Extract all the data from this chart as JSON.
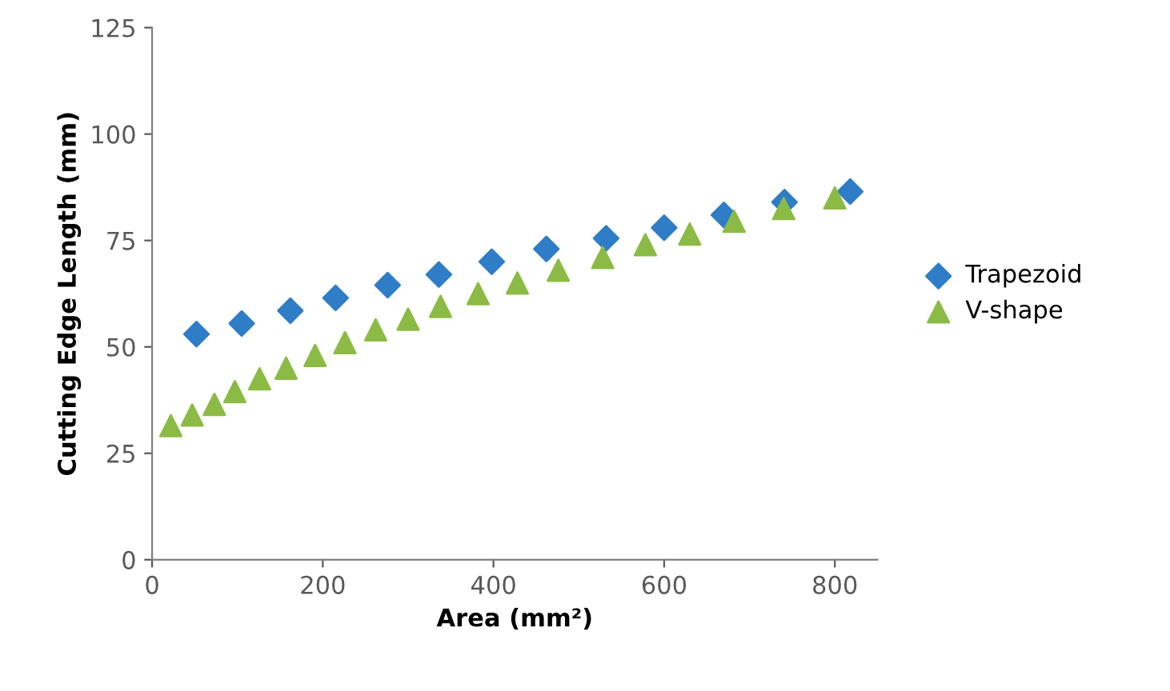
{
  "chart_data": {
    "type": "scatter",
    "xlabel": "Area (mm²)",
    "ylabel": "Cutting Edge Length (mm)",
    "xlim": [
      0,
      850
    ],
    "xticks": [
      0,
      200,
      400,
      600,
      800
    ],
    "ylim": [
      0,
      125
    ],
    "yticks": [
      0,
      25,
      50,
      75,
      100,
      125
    ],
    "grid": false,
    "legend": "right",
    "series": [
      {
        "name": "Trapezoid",
        "color": "#2e7dc6",
        "marker": "diamond",
        "x": [
          52,
          105,
          162,
          215,
          276,
          336,
          398,
          462,
          532,
          600,
          670,
          741,
          818
        ],
        "values": [
          53,
          55.5,
          58.5,
          61.5,
          64.5,
          67,
          70,
          73,
          75.5,
          78,
          81,
          84,
          86.5
        ]
      },
      {
        "name": "V-shape",
        "color": "#8bbb45",
        "marker": "triangle",
        "x": [
          22,
          47,
          73,
          97,
          126,
          157,
          191,
          226,
          262,
          300,
          338,
          382,
          428,
          476,
          528,
          578,
          630,
          682,
          740,
          800
        ],
        "values": [
          31.5,
          34,
          36.5,
          39.5,
          42.5,
          45,
          48,
          51,
          54,
          56.5,
          59.5,
          62.5,
          65,
          68,
          71,
          74,
          76.5,
          79.5,
          82.5,
          85
        ]
      }
    ]
  }
}
